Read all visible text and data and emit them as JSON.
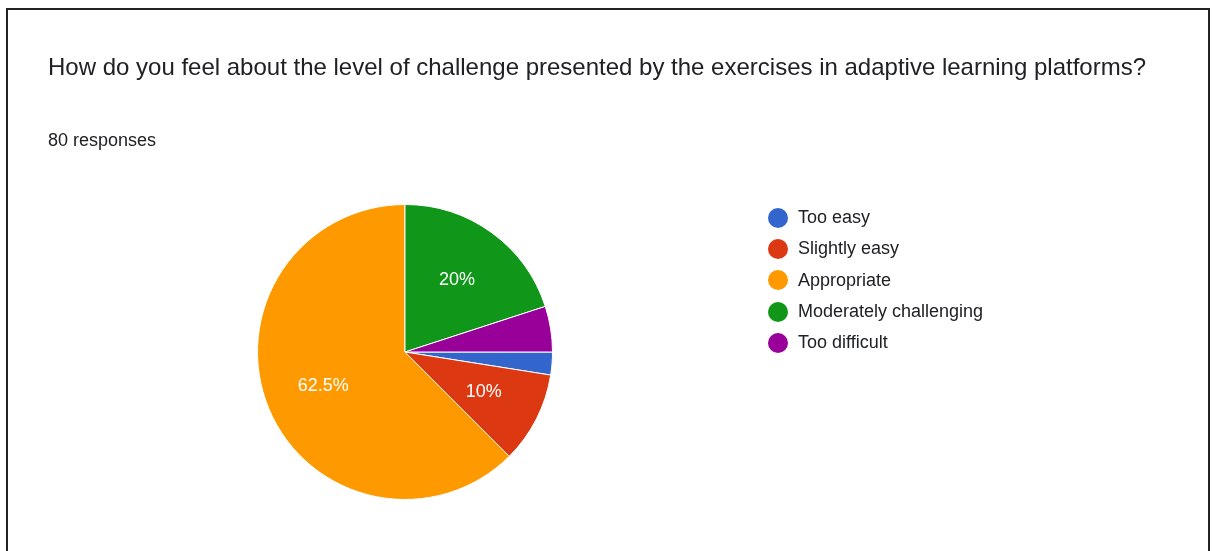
{
  "chart_data": {
    "type": "pie",
    "title": "How do you feel about the level of challenge presented by the exercises in adaptive learning platforms?",
    "subtitle": "80 responses",
    "categories": [
      "Too easy",
      "Slightly easy",
      "Appropriate",
      "Moderately challenging",
      "Too difficult"
    ],
    "values": [
      2.5,
      10,
      62.5,
      20,
      5
    ],
    "value_labels": [
      null,
      "10%",
      "62.5%",
      "20%",
      null
    ],
    "colors": [
      "#3366cc",
      "#dc3912",
      "#ff9900",
      "#109618",
      "#990099"
    ],
    "legend": "right"
  }
}
